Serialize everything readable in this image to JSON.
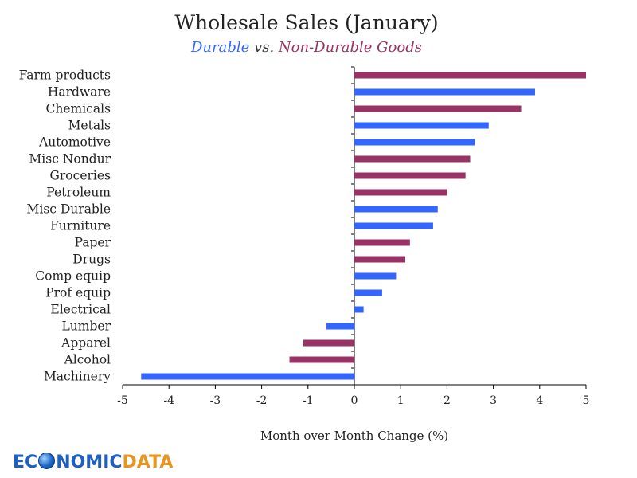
{
  "chart_data": {
    "type": "bar",
    "orientation": "horizontal",
    "title": "Wholesale Sales (January)",
    "subtitle": {
      "durable_label": "Durable",
      "vs_label": "vs.",
      "nondurable_label": "Non-Durable Goods"
    },
    "xlabel": "Month over Month Change (%)",
    "xlim": [
      -5,
      5
    ],
    "xticks": [
      -5,
      -4,
      -3,
      -2,
      -1,
      0,
      1,
      2,
      3,
      4,
      5
    ],
    "colors": {
      "durable": "#3366ff",
      "nondurable": "#993366"
    },
    "bars": [
      {
        "category": "Farm products",
        "value": 5.0,
        "group": "nondurable"
      },
      {
        "category": "Hardware",
        "value": 3.9,
        "group": "durable"
      },
      {
        "category": "Chemicals",
        "value": 3.6,
        "group": "nondurable"
      },
      {
        "category": "Metals",
        "value": 2.9,
        "group": "durable"
      },
      {
        "category": "Automotive",
        "value": 2.6,
        "group": "durable"
      },
      {
        "category": "Misc Nondur",
        "value": 2.5,
        "group": "nondurable"
      },
      {
        "category": "Groceries",
        "value": 2.4,
        "group": "nondurable"
      },
      {
        "category": "Petroleum",
        "value": 2.0,
        "group": "nondurable"
      },
      {
        "category": "Misc Durable",
        "value": 1.8,
        "group": "durable"
      },
      {
        "category": "Furniture",
        "value": 1.7,
        "group": "durable"
      },
      {
        "category": "Paper",
        "value": 1.2,
        "group": "nondurable"
      },
      {
        "category": "Drugs",
        "value": 1.1,
        "group": "nondurable"
      },
      {
        "category": "Comp equip",
        "value": 0.9,
        "group": "durable"
      },
      {
        "category": "Prof equip",
        "value": 0.6,
        "group": "durable"
      },
      {
        "category": "Electrical",
        "value": 0.2,
        "group": "durable"
      },
      {
        "category": "Lumber",
        "value": -0.6,
        "group": "durable"
      },
      {
        "category": "Apparel",
        "value": -1.1,
        "group": "nondurable"
      },
      {
        "category": "Alcohol",
        "value": -1.4,
        "group": "nondurable"
      },
      {
        "category": "Machinery",
        "value": -4.6,
        "group": "durable"
      }
    ]
  },
  "logo": {
    "part1": "EC",
    "part2": "NOMIC",
    "part3": "DATA"
  }
}
